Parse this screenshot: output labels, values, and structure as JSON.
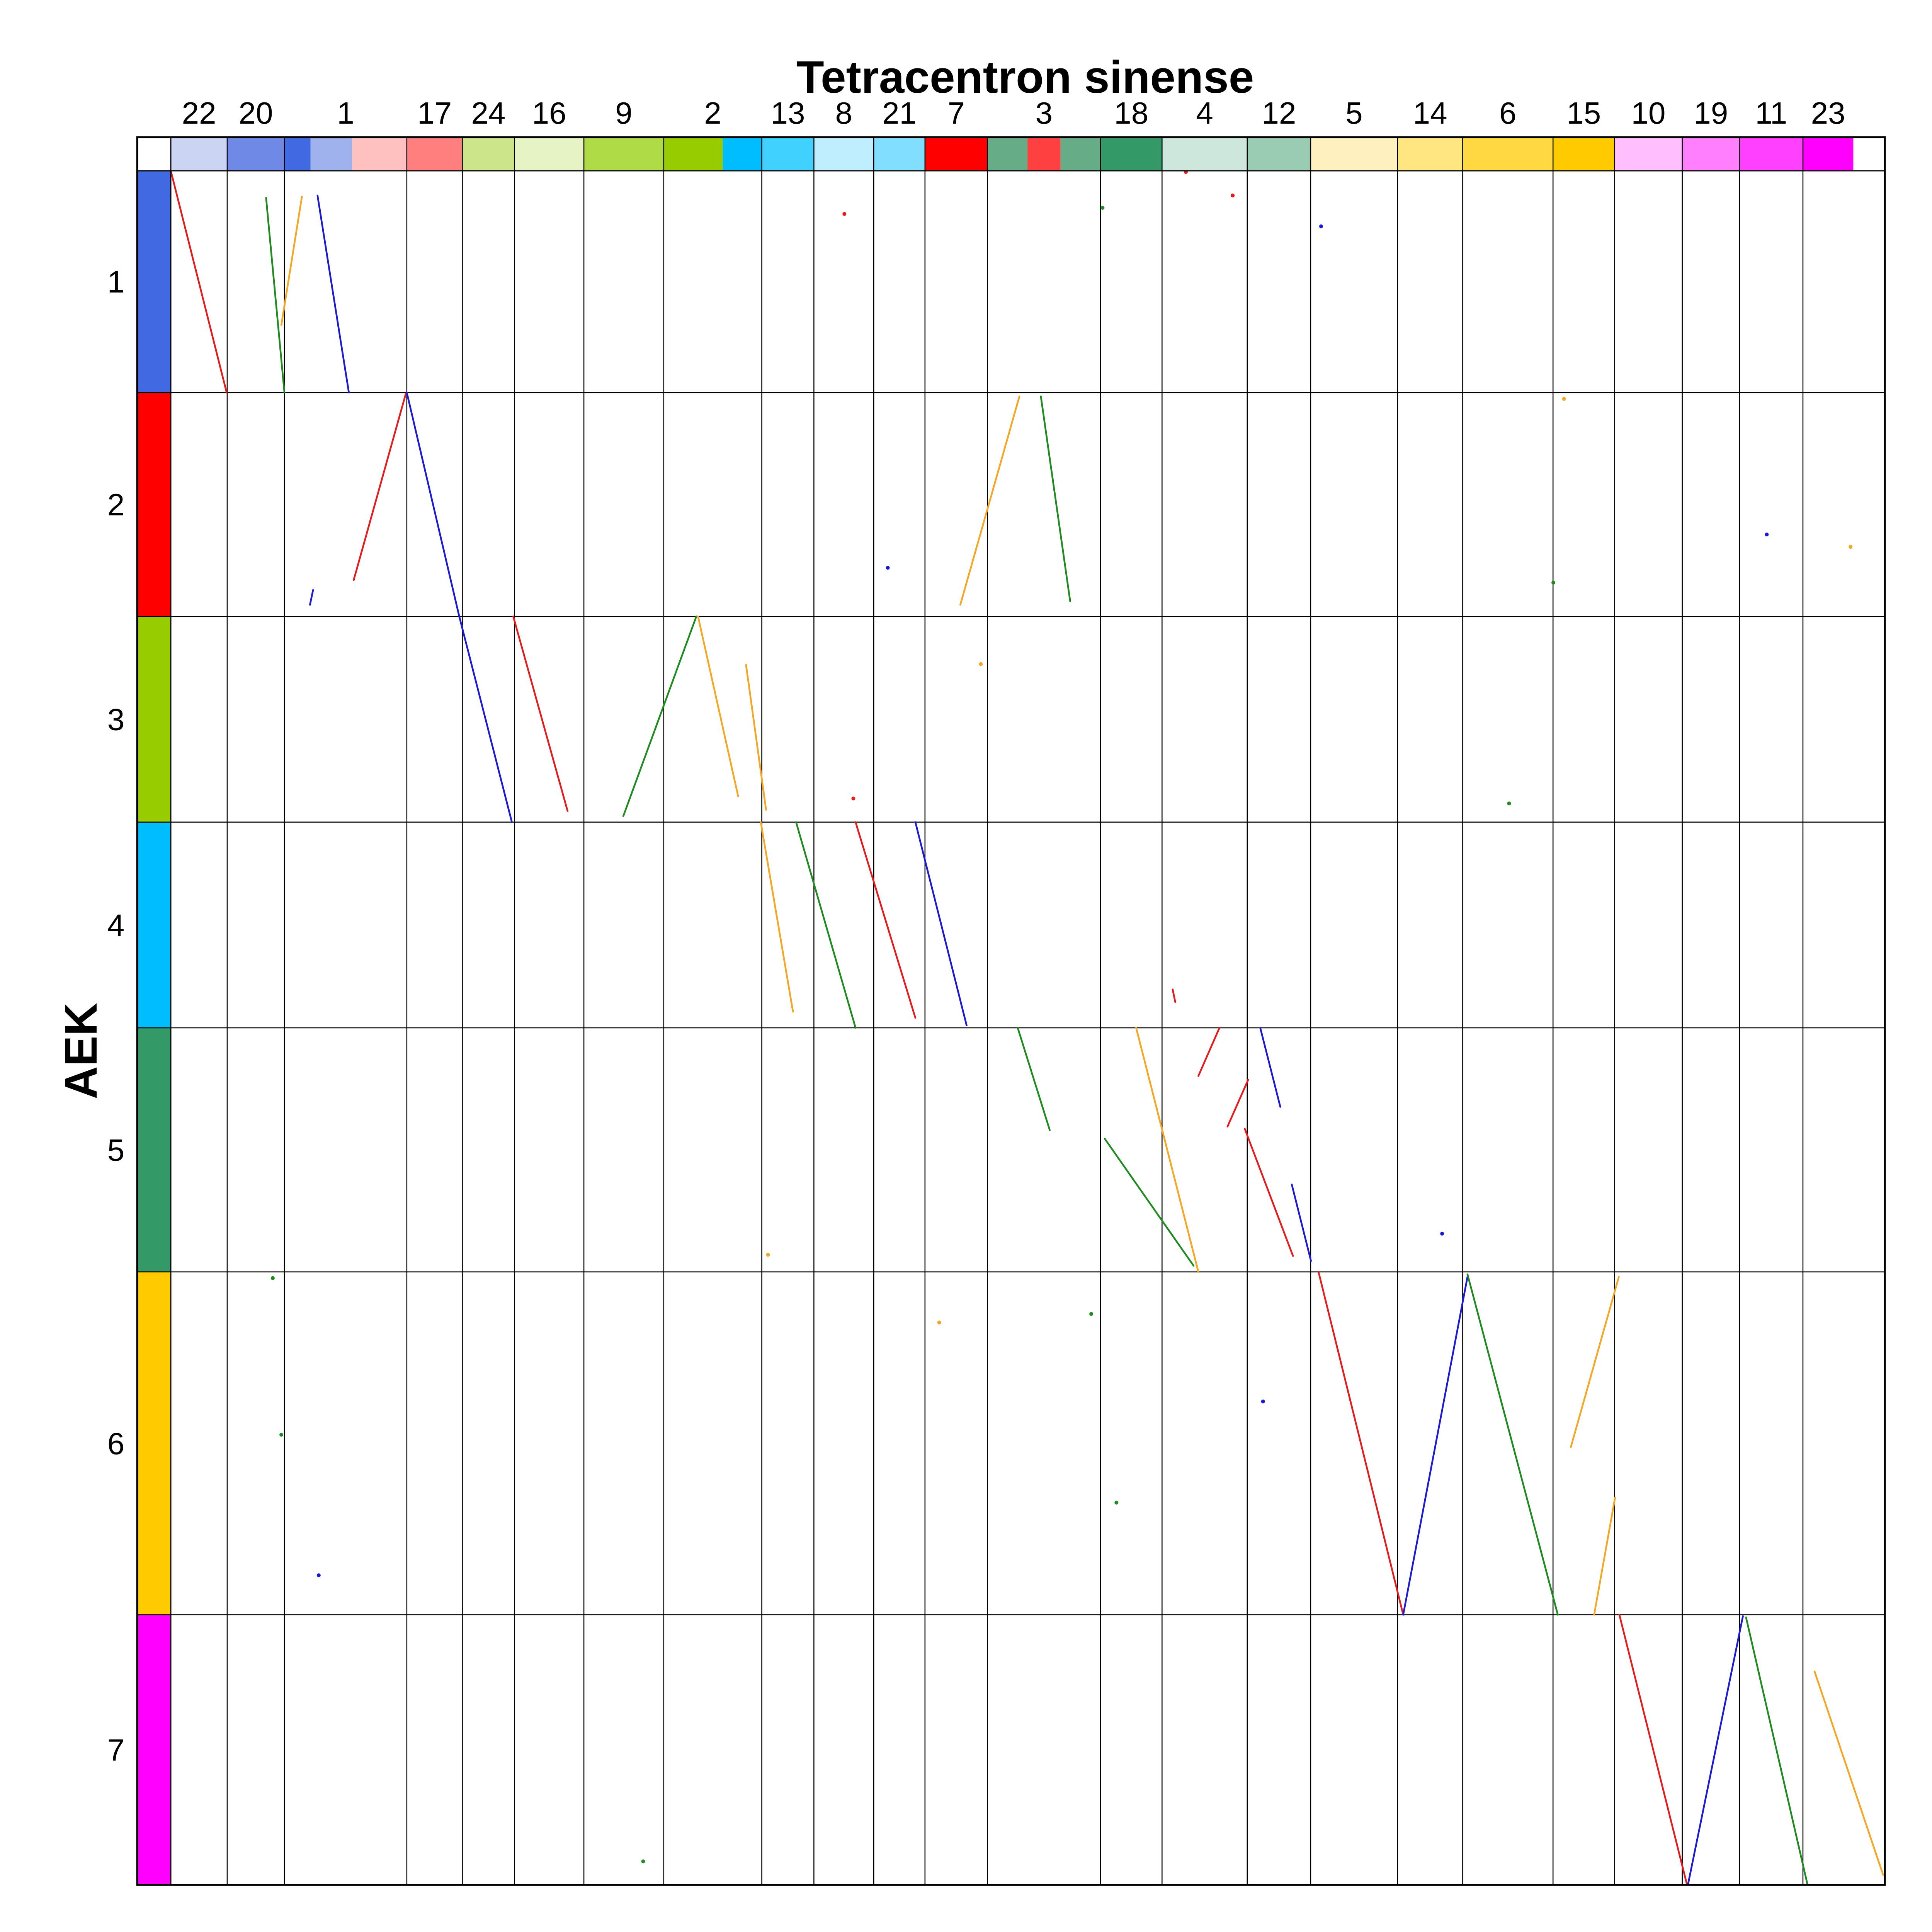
{
  "chart_data": {
    "type": "dot-plot",
    "title": "Tetracentron sinense",
    "xlabel": "Tetracentron sinense",
    "ylabel": "AEK",
    "colors": {
      "red": "#e41a1c",
      "green": "#1f8a1f",
      "blue": "#1a1ad6",
      "orange": "#f5a623",
      "frame": "#000000",
      "grid": "#000000"
    },
    "x_groups": [
      {
        "label": "22",
        "fraction": 0.0329
      },
      {
        "label": "20",
        "fraction": 0.0334
      },
      {
        "label": "1",
        "fraction": 0.0714
      },
      {
        "label": "17",
        "fraction": 0.0324
      },
      {
        "label": "24",
        "fraction": 0.0304
      },
      {
        "label": "16",
        "fraction": 0.0405
      },
      {
        "label": "9",
        "fraction": 0.0466
      },
      {
        "label": "2",
        "fraction": 0.0572
      },
      {
        "label": "13",
        "fraction": 0.0304
      },
      {
        "label": "8",
        "fraction": 0.0349
      },
      {
        "label": "21",
        "fraction": 0.0299
      },
      {
        "label": "7",
        "fraction": 0.0365
      },
      {
        "label": "3",
        "fraction": 0.0659
      },
      {
        "label": "18",
        "fraction": 0.0359
      },
      {
        "label": "4",
        "fraction": 0.0497
      },
      {
        "label": "12",
        "fraction": 0.037
      },
      {
        "label": "5",
        "fraction": 0.0507
      },
      {
        "label": "14",
        "fraction": 0.038
      },
      {
        "label": "6",
        "fraction": 0.0527
      },
      {
        "label": "15",
        "fraction": 0.0359
      },
      {
        "label": "10",
        "fraction": 0.0395
      },
      {
        "label": "19",
        "fraction": 0.0334
      },
      {
        "label": "11",
        "fraction": 0.037
      },
      {
        "label": "23",
        "fraction": 0.0294
      }
    ],
    "x_strip": [
      {
        "color": "#cdd5f4",
        "fraction": 0.0329
      },
      {
        "color": "#7189e6",
        "fraction": 0.0334
      },
      {
        "color": "#4169e1",
        "fraction": 0.0152
      },
      {
        "color": "#a0b2ee",
        "fraction": 0.0243
      },
      {
        "color": "#ffbfbf",
        "fraction": 0.0319
      },
      {
        "color": "#ff7f7f",
        "fraction": 0.0324
      },
      {
        "color": "#cbe68a",
        "fraction": 0.0304
      },
      {
        "color": "#e5f3c5",
        "fraction": 0.0405
      },
      {
        "color": "#b0db47",
        "fraction": 0.0466
      },
      {
        "color": "#99cc00",
        "fraction": 0.0344
      },
      {
        "color": "#00bfff",
        "fraction": 0.0228
      },
      {
        "color": "#40cfff",
        "fraction": 0.0304
      },
      {
        "color": "#bfefff",
        "fraction": 0.0349
      },
      {
        "color": "#80dfff",
        "fraction": 0.0299
      },
      {
        "color": "#ff0000",
        "fraction": 0.0365
      },
      {
        "color": "#66ac87",
        "fraction": 0.0233
      },
      {
        "color": "#ff4040",
        "fraction": 0.0193
      },
      {
        "color": "#66ac87",
        "fraction": 0.0233
      },
      {
        "color": "#339966",
        "fraction": 0.0359
      },
      {
        "color": "#cce6d9",
        "fraction": 0.0497
      },
      {
        "color": "#99ccb2",
        "fraction": 0.037
      },
      {
        "color": "#fff2bf",
        "fraction": 0.0507
      },
      {
        "color": "#ffe680",
        "fraction": 0.038
      },
      {
        "color": "#ffd940",
        "fraction": 0.0527
      },
      {
        "color": "#ffcc00",
        "fraction": 0.0359
      },
      {
        "color": "#ffbfff",
        "fraction": 0.0395
      },
      {
        "color": "#ff80ff",
        "fraction": 0.0334
      },
      {
        "color": "#ff40ff",
        "fraction": 0.037
      },
      {
        "color": "#ff00ff",
        "fraction": 0.0294
      }
    ],
    "y_groups": [
      {
        "label": "1",
        "fraction": 0.1294,
        "color": "#4169e1"
      },
      {
        "label": "2",
        "fraction": 0.1306,
        "color": "#ff0000"
      },
      {
        "label": "3",
        "fraction": 0.12,
        "color": "#99cc00"
      },
      {
        "label": "4",
        "fraction": 0.12,
        "color": "#00bfff"
      },
      {
        "label": "5",
        "fraction": 0.1424,
        "color": "#339966"
      },
      {
        "label": "6",
        "fraction": 0.2,
        "color": "#ffcc00"
      },
      {
        "label": "7",
        "fraction": 0.1576,
        "color": "#ff00ff"
      }
    ],
    "segments": [
      {
        "c": "red",
        "x0": 0.0,
        "y0": 0.0,
        "x1": 0.0326,
        "y1": 0.1294
      },
      {
        "c": "green",
        "x0": 0.0556,
        "y0": 0.0158,
        "x1": 0.0663,
        "y1": 0.1294
      },
      {
        "c": "orange",
        "x0": 0.0645,
        "y0": 0.09,
        "x1": 0.0765,
        "y1": 0.0151
      },
      {
        "c": "blue",
        "x0": 0.0856,
        "y0": 0.0144,
        "x1": 0.1039,
        "y1": 0.1294
      },
      {
        "c": "blue",
        "x0": 0.0812,
        "y0": 0.2532,
        "x1": 0.083,
        "y1": 0.2446
      },
      {
        "c": "red",
        "x0": 0.1067,
        "y0": 0.2388,
        "x1": 0.1371,
        "y1": 0.1301
      },
      {
        "c": "blue",
        "x0": 0.1377,
        "y0": 0.1294,
        "x1": 0.1683,
        "y1": 0.26
      },
      {
        "c": "orange",
        "x0": 0.4606,
        "y0": 0.2532,
        "x1": 0.4951,
        "y1": 0.1316
      },
      {
        "c": "green",
        "x0": 0.5076,
        "y0": 0.1316,
        "x1": 0.5247,
        "y1": 0.2511
      },
      {
        "c": "blue",
        "x0": 0.1683,
        "y0": 0.26,
        "x1": 0.199,
        "y1": 0.38
      },
      {
        "c": "red",
        "x0": 0.1998,
        "y0": 0.26,
        "x1": 0.2315,
        "y1": 0.3735
      },
      {
        "c": "green",
        "x0": 0.264,
        "y0": 0.3765,
        "x1": 0.3066,
        "y1": 0.26
      },
      {
        "c": "orange",
        "x0": 0.3076,
        "y0": 0.26,
        "x1": 0.331,
        "y1": 0.3649
      },
      {
        "c": "orange",
        "x0": 0.3473,
        "y0": 0.3728,
        "x1": 0.3356,
        "y1": 0.2882
      },
      {
        "c": "green",
        "x0": 0.3648,
        "y0": 0.38,
        "x1": 0.3995,
        "y1": 0.5
      },
      {
        "c": "orange",
        "x0": 0.3442,
        "y0": 0.38,
        "x1": 0.363,
        "y1": 0.4906
      },
      {
        "c": "red",
        "x0": 0.3995,
        "y0": 0.38,
        "x1": 0.4344,
        "y1": 0.4942
      },
      {
        "c": "blue",
        "x0": 0.4344,
        "y0": 0.38,
        "x1": 0.4643,
        "y1": 0.4986
      },
      {
        "c": "red",
        "x0": 0.586,
        "y0": 0.4849,
        "x1": 0.5845,
        "y1": 0.4776
      },
      {
        "c": "green",
        "x0": 0.4941,
        "y0": 0.5,
        "x1": 0.5128,
        "y1": 0.5597
      },
      {
        "c": "green",
        "x0": 0.5449,
        "y0": 0.5647,
        "x1": 0.5967,
        "y1": 0.6388
      },
      {
        "c": "orange",
        "x0": 0.5632,
        "y0": 0.5,
        "x1": 0.5995,
        "y1": 0.6424
      },
      {
        "c": "red",
        "x0": 0.5995,
        "y0": 0.5281,
        "x1": 0.6118,
        "y1": 0.5
      },
      {
        "c": "red",
        "x0": 0.6165,
        "y0": 0.5576,
        "x1": 0.6286,
        "y1": 0.5302
      },
      {
        "c": "red",
        "x0": 0.6266,
        "y0": 0.559,
        "x1": 0.6547,
        "y1": 0.6331
      },
      {
        "c": "blue",
        "x0": 0.6356,
        "y0": 0.5,
        "x1": 0.6473,
        "y1": 0.5461
      },
      {
        "c": "blue",
        "x0": 0.654,
        "y0": 0.5914,
        "x1": 0.6652,
        "y1": 0.636
      },
      {
        "c": "red",
        "x0": 0.6696,
        "y0": 0.6424,
        "x1": 0.719,
        "y1": 0.8424
      },
      {
        "c": "blue",
        "x0": 0.719,
        "y0": 0.8424,
        "x1": 0.7565,
        "y1": 0.6453
      },
      {
        "c": "green",
        "x0": 0.7565,
        "y0": 0.6438,
        "x1": 0.8092,
        "y1": 0.8424
      },
      {
        "c": "orange",
        "x0": 0.8168,
        "y0": 0.7446,
        "x1": 0.8448,
        "y1": 0.6453
      },
      {
        "c": "orange",
        "x0": 0.8304,
        "y0": 0.8424,
        "x1": 0.8426,
        "y1": 0.7741
      },
      {
        "c": "red",
        "x0": 0.8451,
        "y0": 0.8424,
        "x1": 0.8846,
        "y1": 1.0
      },
      {
        "c": "blue",
        "x0": 0.8851,
        "y0": 1.0,
        "x1": 0.9172,
        "y1": 0.8432
      },
      {
        "c": "green",
        "x0": 0.919,
        "y0": 0.8439,
        "x1": 0.9549,
        "y1": 1.0
      },
      {
        "c": "orange",
        "x0": 0.959,
        "y0": 0.8755,
        "x1": 0.999,
        "y1": 0.9942
      }
    ],
    "dots": [
      {
        "c": "red",
        "x": 0.393,
        "y": 0.0252
      },
      {
        "c": "green",
        "x": 0.5436,
        "y": 0.0216
      },
      {
        "c": "red",
        "x": 0.5922,
        "y": 0.0007
      },
      {
        "c": "red",
        "x": 0.6195,
        "y": 0.0144
      },
      {
        "c": "blue",
        "x": 0.6711,
        "y": 0.0324
      },
      {
        "c": "blue",
        "x": 0.4183,
        "y": 0.2316
      },
      {
        "c": "orange",
        "x": 0.8128,
        "y": 0.1331
      },
      {
        "c": "green",
        "x": 0.8066,
        "y": 0.2403
      },
      {
        "c": "blue",
        "x": 0.9311,
        "y": 0.2122
      },
      {
        "c": "orange",
        "x": 0.98,
        "y": 0.2194
      },
      {
        "c": "orange",
        "x": 0.4726,
        "y": 0.2878
      },
      {
        "c": "red",
        "x": 0.3982,
        "y": 0.3662
      },
      {
        "c": "green",
        "x": 0.7808,
        "y": 0.3691
      },
      {
        "c": "orange",
        "x": 0.3484,
        "y": 0.6324
      },
      {
        "c": "green",
        "x": 0.0595,
        "y": 0.646
      },
      {
        "c": "green",
        "x": 0.0645,
        "y": 0.7374
      },
      {
        "c": "blue",
        "x": 0.0863,
        "y": 0.8194
      },
      {
        "c": "orange",
        "x": 0.4483,
        "y": 0.6719
      },
      {
        "c": "green",
        "x": 0.537,
        "y": 0.6669
      },
      {
        "c": "green",
        "x": 0.5517,
        "y": 0.777
      },
      {
        "c": "blue",
        "x": 0.6372,
        "y": 0.718
      },
      {
        "c": "blue",
        "x": 0.7417,
        "y": 0.6201
      },
      {
        "c": "green",
        "x": 0.2756,
        "y": 0.9863
      }
    ]
  }
}
